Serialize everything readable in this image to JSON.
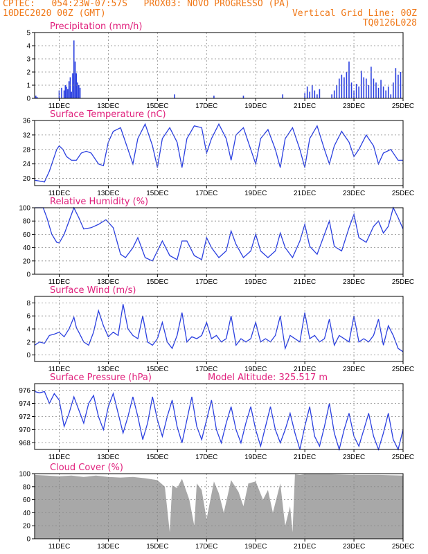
{
  "header": {
    "line1": "CPTEC:   054:23W-07:57S   PROX03: NOVO PROGRESSO (PA)",
    "line2": "10DEC2020 00Z (GMT)",
    "grid_note": "Vertical Grid Line: 00Z",
    "run_id": "TQ0126L028"
  },
  "colors": {
    "header": "#f07818",
    "title": "#e0207c",
    "series": "#2a3fe0",
    "cloud": "#a8a8a8",
    "grid": "#888888"
  },
  "chart_data": [
    {
      "type": "bar",
      "title": "Precipitation (mm/h)",
      "ylim": [
        0,
        5
      ],
      "yticks": [
        0,
        1,
        2,
        3,
        4,
        5
      ],
      "xticks": [
        "11DEC",
        "13DEC",
        "15DEC",
        "17DEC",
        "19DEC",
        "21DEC",
        "23DEC",
        "25DEC"
      ],
      "x_days": [
        0,
        15
      ],
      "x": [
        0.05,
        0.1,
        1.0,
        1.1,
        1.2,
        1.25,
        1.3,
        1.35,
        1.4,
        1.45,
        1.5,
        1.55,
        1.6,
        1.65,
        1.7,
        1.75,
        1.8,
        1.85,
        5.7,
        7.3,
        8.5,
        10.1,
        11.0,
        11.1,
        11.2,
        11.3,
        11.4,
        11.5,
        11.6,
        12.1,
        12.2,
        12.3,
        12.4,
        12.5,
        12.6,
        12.7,
        12.8,
        12.9,
        13.0,
        13.1,
        13.2,
        13.3,
        13.4,
        13.5,
        13.6,
        13.7,
        13.8,
        13.9,
        14.0,
        14.1,
        14.2,
        14.3,
        14.4,
        14.5,
        14.6,
        14.7,
        14.8,
        14.9
      ],
      "values": [
        0.2,
        0.1,
        0.6,
        0.8,
        0.6,
        1.0,
        0.9,
        0.7,
        1.3,
        1.6,
        0.5,
        1.9,
        4.4,
        2.8,
        1.9,
        1.2,
        1.0,
        0.8,
        0.3,
        0.2,
        0.2,
        0.3,
        0.4,
        0.9,
        0.5,
        1.0,
        0.6,
        0.3,
        0.7,
        0.3,
        0.6,
        1.0,
        1.5,
        1.8,
        1.6,
        2.0,
        2.8,
        1.2,
        0.6,
        1.1,
        0.9,
        2.1,
        1.6,
        1.5,
        1.0,
        2.4,
        1.5,
        1.2,
        0.8,
        1.4,
        0.9,
        0.6,
        0.9,
        0.3,
        1.2,
        2.3,
        1.8,
        2.0
      ]
    },
    {
      "type": "line",
      "title": "Surface Temperature (nC)",
      "ylim": [
        18,
        36
      ],
      "yticks": [
        20,
        24,
        28,
        32,
        36
      ],
      "xticks": [
        "11DEC",
        "13DEC",
        "15DEC",
        "17DEC",
        "19DEC",
        "21DEC",
        "23DEC",
        "25DEC"
      ],
      "x_days": [
        0,
        15
      ],
      "x": [
        0,
        0.4,
        0.6,
        0.8,
        0.9,
        1.0,
        1.15,
        1.3,
        1.5,
        1.7,
        1.9,
        2.1,
        2.3,
        2.6,
        2.8,
        3.0,
        3.2,
        3.5,
        3.8,
        4.0,
        4.2,
        4.5,
        4.8,
        5.0,
        5.2,
        5.5,
        5.8,
        6.0,
        6.2,
        6.5,
        6.8,
        7.0,
        7.2,
        7.5,
        7.8,
        8.0,
        8.2,
        8.5,
        8.8,
        9.0,
        9.2,
        9.5,
        9.8,
        10.0,
        10.2,
        10.5,
        10.8,
        11.0,
        11.2,
        11.5,
        11.8,
        12.0,
        12.2,
        12.5,
        12.8,
        13.0,
        13.2,
        13.5,
        13.8,
        14.0,
        14.2,
        14.5,
        14.8,
        15.0
      ],
      "values": [
        19.5,
        19,
        22,
        26,
        28,
        29,
        28,
        26,
        25,
        25,
        27,
        27.5,
        27,
        24,
        23.5,
        30,
        33,
        34,
        28,
        24,
        31,
        35,
        29,
        23,
        31,
        34,
        30,
        23,
        31,
        34.5,
        34,
        27,
        31,
        35,
        31,
        25,
        32,
        34,
        28,
        24,
        31,
        33.5,
        28,
        23,
        31,
        34,
        28,
        23,
        31,
        34.5,
        28,
        24,
        29,
        33,
        30,
        26,
        28,
        32,
        29,
        24,
        27,
        28,
        25,
        25
      ]
    },
    {
      "type": "line",
      "title": "Relative Humidity (%)",
      "ylim": [
        0,
        100
      ],
      "yticks": [
        0,
        20,
        40,
        60,
        80,
        100
      ],
      "xticks": [
        "11DEC",
        "13DEC",
        "15DEC",
        "17DEC",
        "19DEC",
        "21DEC",
        "23DEC",
        "25DEC"
      ],
      "x_days": [
        0,
        15
      ],
      "x": [
        0,
        0.35,
        0.5,
        0.7,
        0.9,
        1.0,
        1.2,
        1.35,
        1.6,
        1.8,
        2.0,
        2.3,
        2.6,
        2.9,
        3.2,
        3.5,
        3.7,
        4.0,
        4.2,
        4.5,
        4.8,
        5.0,
        5.2,
        5.5,
        5.8,
        6.0,
        6.2,
        6.5,
        6.8,
        7.0,
        7.2,
        7.5,
        7.8,
        8.0,
        8.2,
        8.5,
        8.8,
        9.0,
        9.2,
        9.5,
        9.8,
        10.0,
        10.2,
        10.5,
        10.8,
        11.0,
        11.2,
        11.5,
        11.8,
        12.0,
        12.2,
        12.5,
        12.8,
        13.0,
        13.2,
        13.5,
        13.8,
        14.0,
        14.2,
        14.4,
        14.6,
        14.8,
        15.0
      ],
      "values": [
        100,
        100,
        85,
        60,
        48,
        47,
        60,
        75,
        100,
        85,
        68,
        70,
        75,
        82,
        70,
        30,
        25,
        40,
        55,
        25,
        20,
        35,
        50,
        28,
        22,
        50,
        50,
        28,
        22,
        55,
        40,
        25,
        35,
        65,
        45,
        25,
        35,
        60,
        35,
        25,
        35,
        62,
        40,
        25,
        50,
        75,
        42,
        30,
        60,
        80,
        42,
        35,
        70,
        90,
        55,
        48,
        72,
        80,
        62,
        72,
        100,
        85,
        68
      ]
    },
    {
      "type": "line",
      "title": "Surface Wind (m/s)",
      "ylim": [
        -1,
        9
      ],
      "yticks": [
        0,
        2,
        4,
        6,
        8
      ],
      "xticks": [
        "11DEC",
        "13DEC",
        "15DEC",
        "17DEC",
        "19DEC",
        "21DEC",
        "23DEC",
        "25DEC"
      ],
      "x_days": [
        0,
        15
      ],
      "x": [
        0,
        0.2,
        0.4,
        0.6,
        0.8,
        1.0,
        1.2,
        1.4,
        1.6,
        1.7,
        1.8,
        2.0,
        2.2,
        2.4,
        2.6,
        2.8,
        3.0,
        3.2,
        3.4,
        3.6,
        3.8,
        4.0,
        4.2,
        4.4,
        4.6,
        4.8,
        5.0,
        5.2,
        5.4,
        5.6,
        5.8,
        6.0,
        6.2,
        6.4,
        6.6,
        6.8,
        7.0,
        7.2,
        7.4,
        7.6,
        7.8,
        8.0,
        8.2,
        8.4,
        8.6,
        8.8,
        9.0,
        9.2,
        9.4,
        9.6,
        9.8,
        10.0,
        10.2,
        10.4,
        10.6,
        10.8,
        11.0,
        11.2,
        11.4,
        11.6,
        11.8,
        12.0,
        12.2,
        12.4,
        12.6,
        12.8,
        13.0,
        13.2,
        13.4,
        13.6,
        13.8,
        14.0,
        14.2,
        14.4,
        14.6,
        14.8,
        15.0
      ],
      "values": [
        1.5,
        2.0,
        1.8,
        3.0,
        3.2,
        3.5,
        2.8,
        4.0,
        5.8,
        4.2,
        3.5,
        2.0,
        1.5,
        3.5,
        6.8,
        4.5,
        2.8,
        3.5,
        3.0,
        7.8,
        4.0,
        3.0,
        2.5,
        6.0,
        2.0,
        1.5,
        2.5,
        5.0,
        2.0,
        1.0,
        3.0,
        6.5,
        2.0,
        2.8,
        2.5,
        3.0,
        5.0,
        2.5,
        3.0,
        2.0,
        2.5,
        6.0,
        1.5,
        2.5,
        2.0,
        2.5,
        5.0,
        2.0,
        2.5,
        2.0,
        3.0,
        6.0,
        1.0,
        3.0,
        2.5,
        2.0,
        6.5,
        2.5,
        3.0,
        2.0,
        2.5,
        5.5,
        1.5,
        3.0,
        2.5,
        2.0,
        6.0,
        2.0,
        2.5,
        2.0,
        3.0,
        5.5,
        1.5,
        4.5,
        3.0,
        1.0,
        0.5
      ]
    },
    {
      "type": "line",
      "title": "Surface Pressure (hPa)",
      "annotation": "Model Altitude: 325.517 m",
      "ylim": [
        967,
        977
      ],
      "yticks": [
        968,
        970,
        972,
        974,
        976
      ],
      "xticks": [
        "11DEC",
        "13DEC",
        "15DEC",
        "17DEC",
        "19DEC",
        "21DEC",
        "23DEC",
        "25DEC"
      ],
      "x_days": [
        0,
        15
      ],
      "x": [
        0,
        0.2,
        0.4,
        0.6,
        0.8,
        1.0,
        1.2,
        1.4,
        1.6,
        1.8,
        2.0,
        2.2,
        2.4,
        2.6,
        2.8,
        3.0,
        3.2,
        3.4,
        3.6,
        3.8,
        4.0,
        4.2,
        4.4,
        4.6,
        4.8,
        5.0,
        5.2,
        5.4,
        5.6,
        5.8,
        6.0,
        6.2,
        6.4,
        6.6,
        6.8,
        7.0,
        7.2,
        7.4,
        7.6,
        7.8,
        8.0,
        8.2,
        8.4,
        8.6,
        8.8,
        9.0,
        9.2,
        9.4,
        9.6,
        9.8,
        10.0,
        10.2,
        10.4,
        10.6,
        10.8,
        11.0,
        11.2,
        11.4,
        11.6,
        11.8,
        12.0,
        12.2,
        12.4,
        12.6,
        12.8,
        13.0,
        13.2,
        13.4,
        13.6,
        13.8,
        14.0,
        14.2,
        14.4,
        14.6,
        14.8,
        15.0
      ],
      "values": [
        975.8,
        975.6,
        975.8,
        974.0,
        975.5,
        974.5,
        970.5,
        972.5,
        975.0,
        973.0,
        971.0,
        974.0,
        975.2,
        972.0,
        970.0,
        973.5,
        975.5,
        972.5,
        969.5,
        972.0,
        975.0,
        972.0,
        968.5,
        971.0,
        975.0,
        971.5,
        969.0,
        972.0,
        974.5,
        970.5,
        968.0,
        971.5,
        975.0,
        970.5,
        968.5,
        971.5,
        974.5,
        970.0,
        968.0,
        971.0,
        973.5,
        970.0,
        968.0,
        971.0,
        973.5,
        970.0,
        967.5,
        970.5,
        973.5,
        970.0,
        968.0,
        970.0,
        972.5,
        969.5,
        967.0,
        970.5,
        973.5,
        969.0,
        967.5,
        970.5,
        974.0,
        969.5,
        967.0,
        970.0,
        972.5,
        969.0,
        967.5,
        970.0,
        972.5,
        969.0,
        967.0,
        969.5,
        972.5,
        968.5,
        967.0,
        970.0
      ]
    },
    {
      "type": "area",
      "title": "Cloud Cover (%)",
      "ylim": [
        0,
        100
      ],
      "yticks": [
        0,
        20,
        40,
        60,
        80,
        100
      ],
      "xticks": [
        "11DEC",
        "13DEC",
        "15DEC",
        "17DEC",
        "19DEC",
        "21DEC",
        "23DEC",
        "25DEC"
      ],
      "x_days": [
        0,
        15
      ],
      "x": [
        0,
        0.5,
        1.0,
        1.5,
        2.0,
        2.5,
        3.0,
        3.5,
        4.0,
        4.5,
        5.0,
        5.3,
        5.5,
        5.6,
        5.8,
        6.0,
        6.3,
        6.5,
        6.6,
        6.8,
        7.0,
        7.3,
        7.5,
        7.7,
        8.0,
        8.3,
        8.5,
        8.7,
        9.0,
        9.3,
        9.5,
        9.7,
        10.0,
        10.2,
        10.4,
        10.5,
        10.6,
        10.8,
        11.0,
        12.0,
        13.0,
        14.0,
        15.0
      ],
      "values": [
        98,
        97,
        96,
        97,
        95,
        97,
        95,
        94,
        95,
        93,
        90,
        80,
        10,
        82,
        78,
        92,
        60,
        20,
        85,
        75,
        30,
        88,
        70,
        40,
        90,
        72,
        50,
        85,
        88,
        60,
        75,
        40,
        85,
        20,
        50,
        10,
        99,
        98,
        99,
        99,
        98,
        98,
        97
      ]
    }
  ]
}
